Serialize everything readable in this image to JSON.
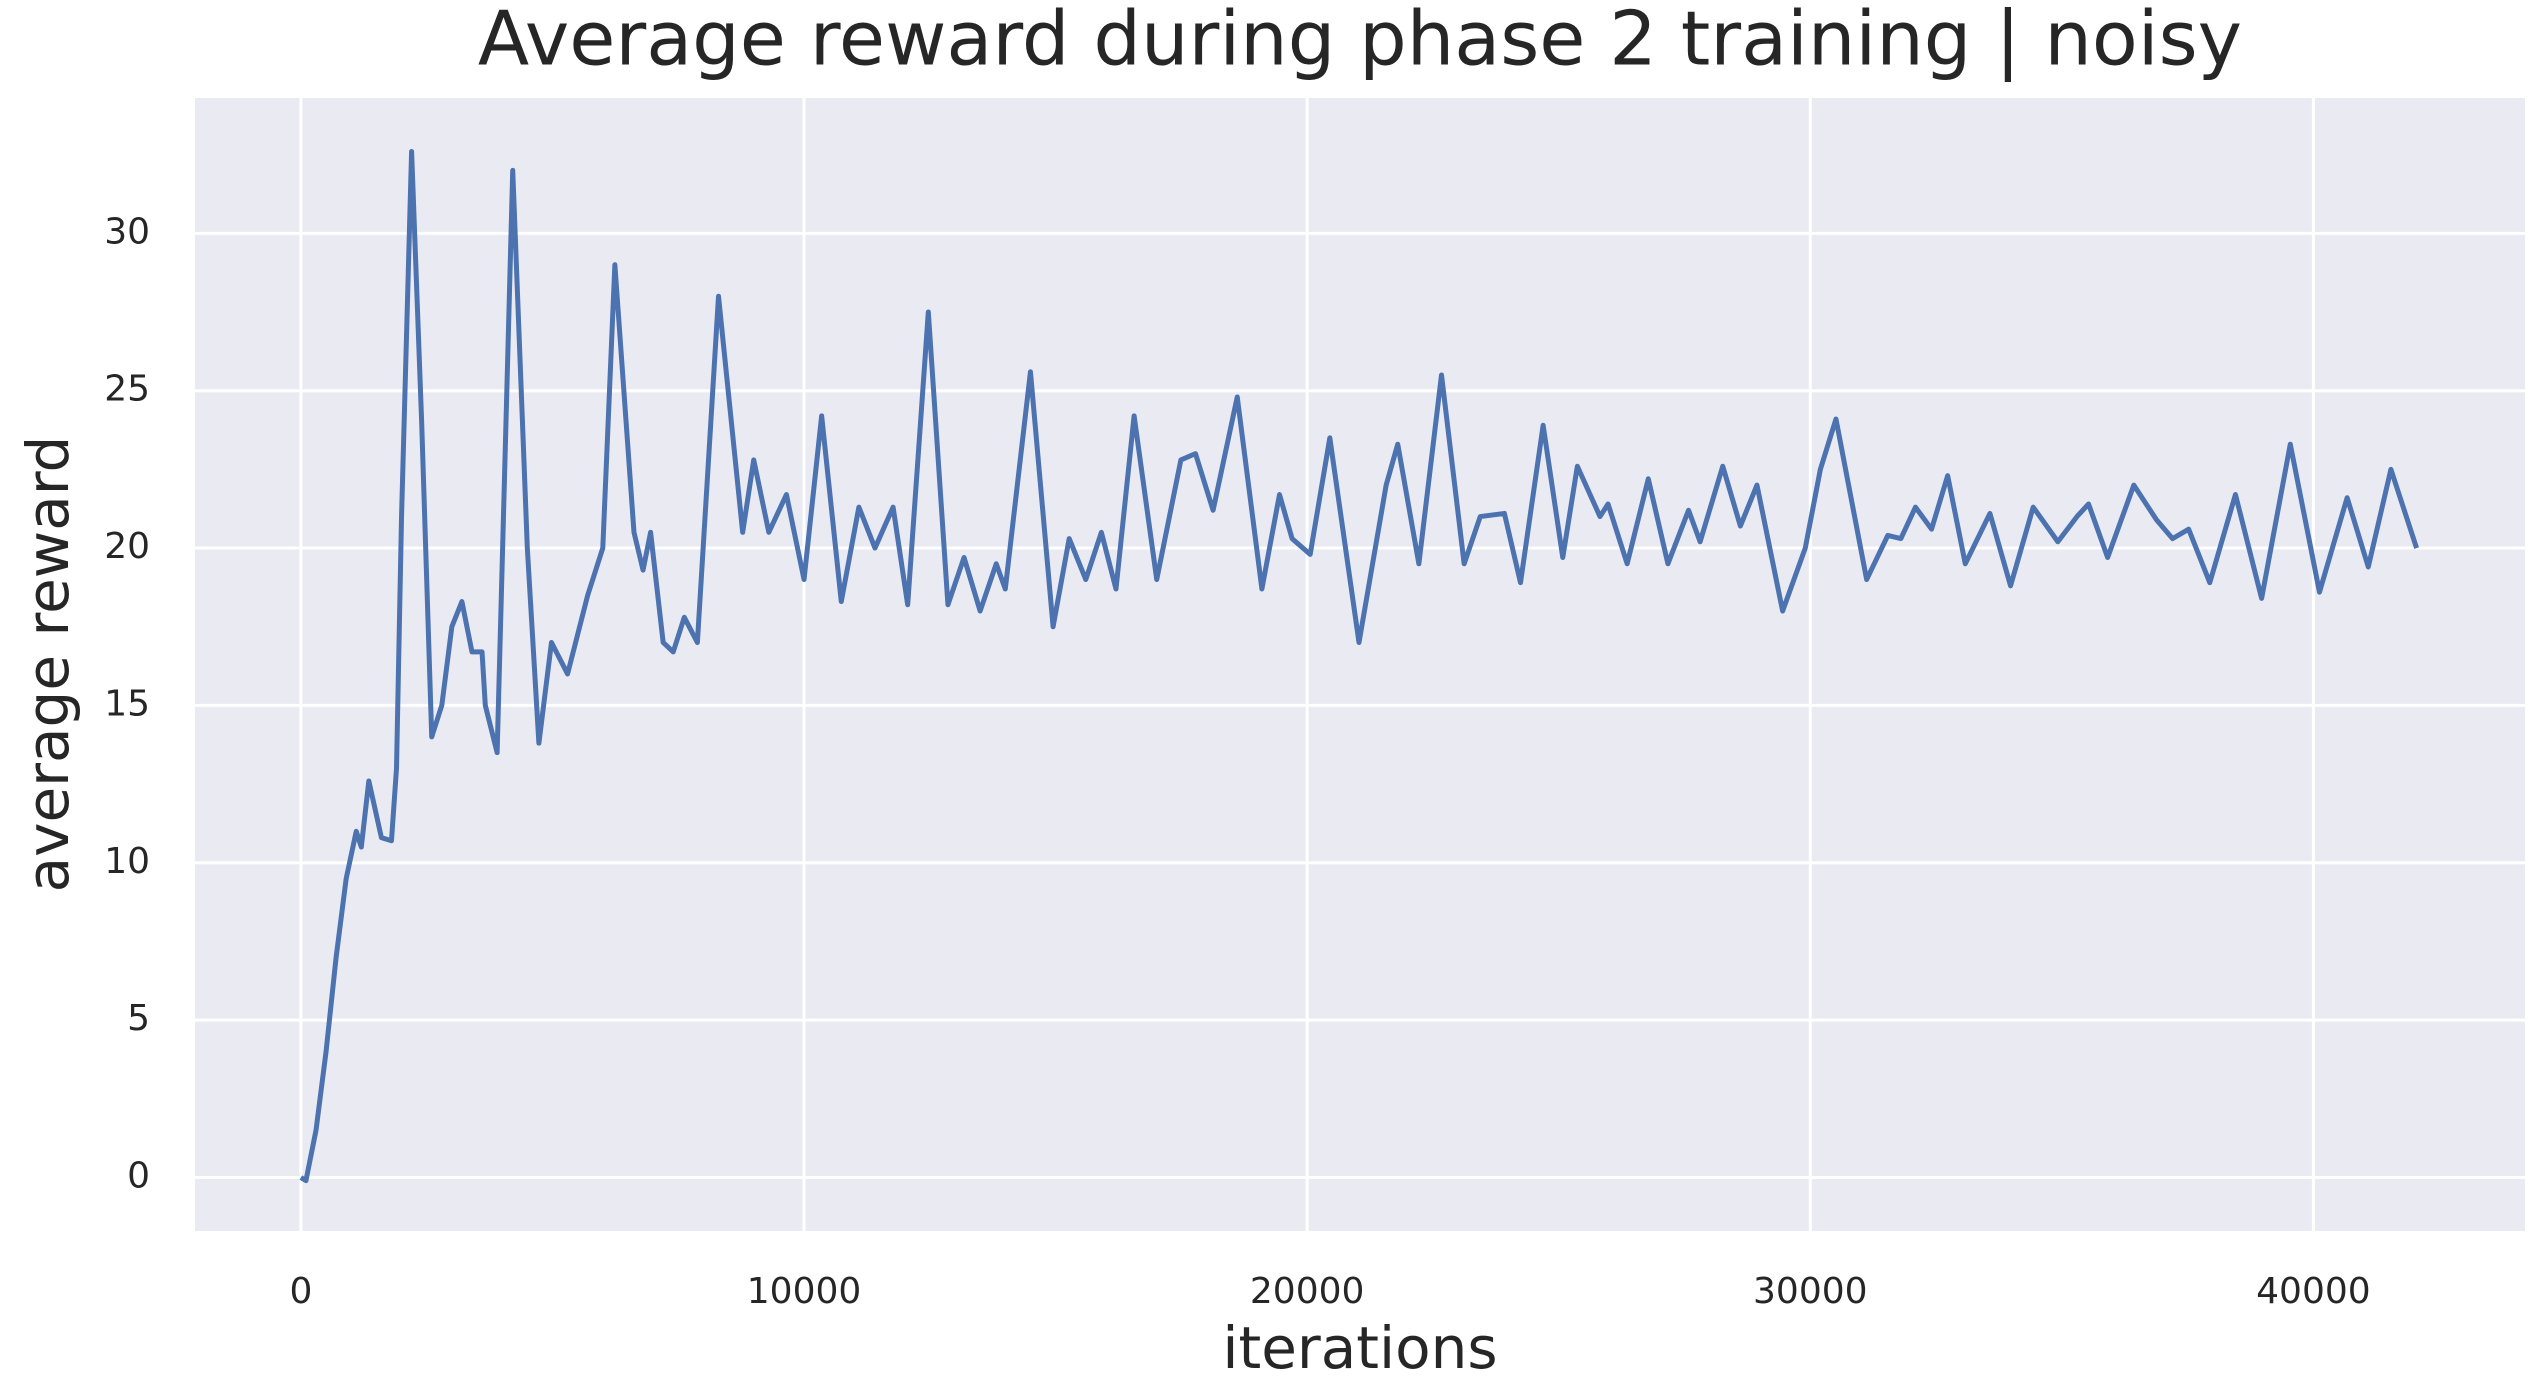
{
  "chart_data": {
    "type": "line",
    "title": "Average reward during phase 2 training | noisy",
    "x_label": "iterations",
    "y_label": "average reward",
    "x": [
      0,
      100,
      300,
      500,
      700,
      900,
      1100,
      1200,
      1350,
      1600,
      1800,
      1900,
      2000,
      2200,
      2400,
      2600,
      2800,
      3000,
      3200,
      3400,
      3600,
      3665,
      3900,
      4210,
      4500,
      4730,
      4980,
      5300,
      5700,
      6000,
      6240,
      6620,
      6800,
      6950,
      7200,
      7400,
      7620,
      7880,
      8300,
      8780,
      9000,
      9300,
      9650,
      10000,
      10350,
      10740,
      11090,
      11410,
      11770,
      12060,
      12470,
      12860,
      13180,
      13500,
      13820,
      14000,
      14500,
      14950,
      15270,
      15600,
      15910,
      16200,
      16560,
      17010,
      17490,
      17780,
      18130,
      18610,
      19100,
      19450,
      19700,
      20060,
      20450,
      21030,
      21570,
      21800,
      22220,
      22670,
      23120,
      23440,
      23920,
      24240,
      24690,
      25080,
      25370,
      25820,
      25980,
      26360,
      26780,
      27170,
      27580,
      27810,
      28260,
      28610,
      28940,
      29450,
      29900,
      30200,
      30510,
      31120,
      31540,
      31800,
      32090,
      32410,
      32730,
      33080,
      33570,
      33980,
      34430,
      34920,
      35300,
      35530,
      35910,
      36430,
      36880,
      37200,
      37520,
      37940,
      38450,
      38970,
      39540,
      40120,
      40670,
      41090,
      41540,
      42050
    ],
    "series": [
      {
        "name": "average reward",
        "color": "#4c72b0",
        "values": [
          0,
          -0.1,
          1.5,
          4,
          7,
          9.5,
          11,
          10.5,
          12.6,
          10.8,
          10.7,
          13,
          21,
          32.6,
          24,
          14,
          15,
          17.5,
          18.3,
          16.7,
          16.7,
          15,
          13.5,
          32,
          20,
          13.8,
          17,
          16,
          18.5,
          20,
          29,
          20.5,
          19.3,
          20.5,
          17,
          16.7,
          17.8,
          17,
          28,
          20.5,
          22.8,
          20.5,
          21.7,
          19,
          24.2,
          18.3,
          21.3,
          20,
          21.3,
          18.2,
          27.5,
          18.2,
          19.7,
          18,
          19.5,
          18.7,
          25.6,
          17.5,
          20.3,
          19,
          20.5,
          18.7,
          24.2,
          19,
          22.8,
          23,
          21.2,
          24.8,
          18.7,
          21.7,
          20.3,
          19.8,
          23.5,
          17,
          22,
          23.3,
          19.5,
          25.5,
          19.5,
          21,
          21.1,
          18.9,
          23.9,
          19.7,
          22.6,
          21,
          21.4,
          19.5,
          22.2,
          19.5,
          21.2,
          20.2,
          22.6,
          20.7,
          22,
          18,
          20,
          22.5,
          24.1,
          19,
          20.4,
          20.3,
          21.3,
          20.6,
          22.3,
          19.5,
          21.1,
          18.8,
          21.3,
          20.2,
          21,
          21.4,
          19.7,
          22,
          20.9,
          20.3,
          20.6,
          18.9,
          21.7,
          18.4,
          23.3,
          18.6,
          21.6,
          19.4,
          22.5,
          20
        ]
      }
    ],
    "xlim": [
      -2105,
      44205
    ],
    "ylim": [
      -1.7,
      34.3
    ],
    "xticks": [
      0,
      10000,
      20000,
      30000,
      40000
    ],
    "yticks": [
      0,
      5,
      10,
      15,
      20,
      25,
      30
    ],
    "grid": true,
    "background": "#eaeaf2",
    "grid_color": "#ffffff"
  }
}
